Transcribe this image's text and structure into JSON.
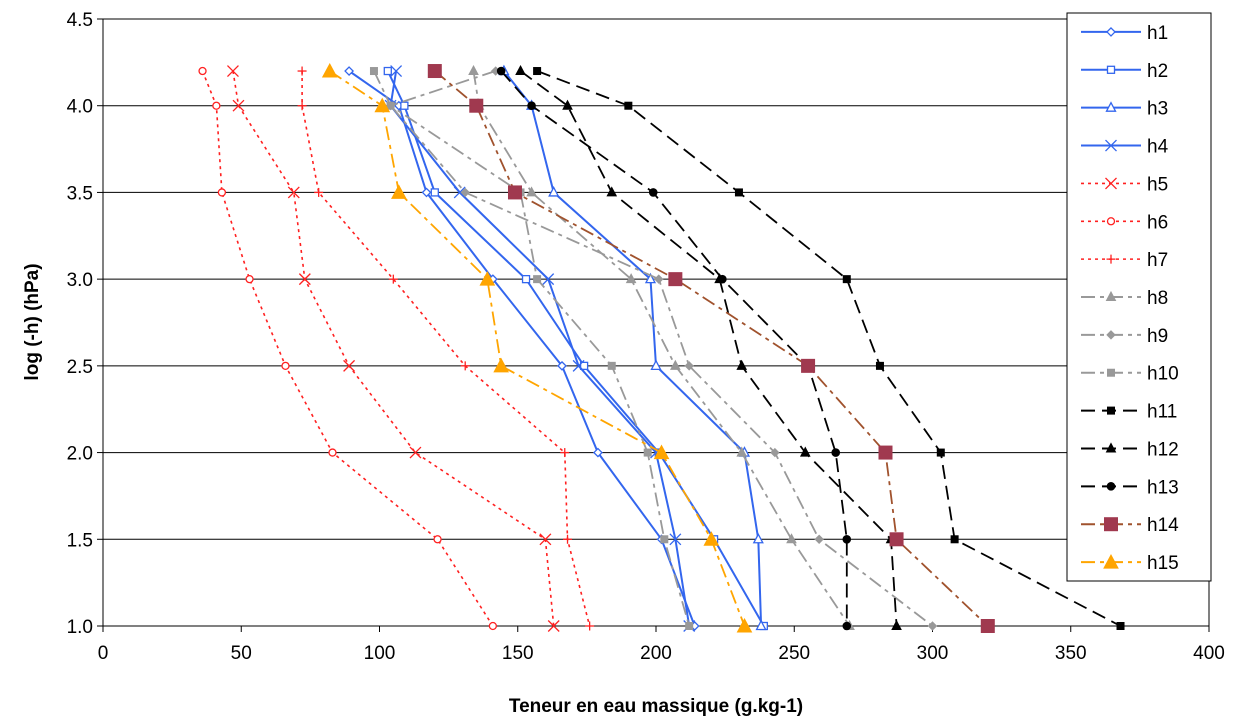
{
  "chart_data": {
    "type": "line",
    "title": "",
    "xlabel": "Teneur en eau massique (g.kg-1)",
    "ylabel": "log (-h) (hPa)",
    "xlim": [
      0,
      400
    ],
    "ylim": [
      1.0,
      4.5
    ],
    "xticks": [
      "0",
      "50",
      "100",
      "150",
      "200",
      "250",
      "300",
      "350",
      "400"
    ],
    "yticks": [
      "1.0",
      "1.5",
      "2.0",
      "2.5",
      "3.0",
      "3.5",
      "4.0",
      "4.5"
    ],
    "grid": "horizontal",
    "legend_position": "right",
    "series": [
      {
        "name": "h1",
        "color": "#3366ee",
        "dash": "solid",
        "marker": "diamond-open",
        "points": [
          [
            89,
            4.2
          ],
          [
            107,
            4.0
          ],
          [
            117,
            3.5
          ],
          [
            141,
            3.0
          ],
          [
            166,
            2.5
          ],
          [
            179,
            2.0
          ],
          [
            202,
            1.5
          ],
          [
            214,
            1.0
          ]
        ]
      },
      {
        "name": "h2",
        "color": "#3366ee",
        "dash": "solid",
        "marker": "square-open",
        "points": [
          [
            103,
            4.2
          ],
          [
            109,
            4.0
          ],
          [
            120,
            3.5
          ],
          [
            153,
            3.0
          ],
          [
            174,
            2.5
          ],
          [
            201,
            2.0
          ],
          [
            221,
            1.5
          ],
          [
            239,
            1.0
          ]
        ]
      },
      {
        "name": "h3",
        "color": "#3366ee",
        "dash": "solid",
        "marker": "triangle-open",
        "points": [
          [
            145,
            4.2
          ],
          [
            155,
            4.0
          ],
          [
            163,
            3.5
          ],
          [
            198,
            3.0
          ],
          [
            200,
            2.5
          ],
          [
            232,
            2.0
          ],
          [
            237,
            1.5
          ],
          [
            238,
            1.0
          ]
        ]
      },
      {
        "name": "h4",
        "color": "#3366ee",
        "dash": "solid",
        "marker": "x",
        "points": [
          [
            106,
            4.2
          ],
          [
            104,
            4.0
          ],
          [
            129,
            3.5
          ],
          [
            161,
            3.0
          ],
          [
            172,
            2.5
          ],
          [
            200,
            2.0
          ],
          [
            207,
            1.5
          ],
          [
            212,
            1.0
          ]
        ]
      },
      {
        "name": "h5",
        "color": "#ff2020",
        "dash": "dot",
        "marker": "x",
        "points": [
          [
            47,
            4.2
          ],
          [
            49,
            4.0
          ],
          [
            69,
            3.5
          ],
          [
            73,
            3.0
          ],
          [
            89,
            2.5
          ],
          [
            113,
            2.0
          ],
          [
            160,
            1.5
          ],
          [
            163,
            1.0
          ]
        ]
      },
      {
        "name": "h6",
        "color": "#ff2020",
        "dash": "dot",
        "marker": "circle-open",
        "points": [
          [
            36,
            4.2
          ],
          [
            41,
            4.0
          ],
          [
            43,
            3.5
          ],
          [
            53,
            3.0
          ],
          [
            66,
            2.5
          ],
          [
            83,
            2.0
          ],
          [
            121,
            1.5
          ],
          [
            141,
            1.0
          ]
        ]
      },
      {
        "name": "h7",
        "color": "#ff2020",
        "dash": "dot",
        "marker": "plus",
        "points": [
          [
            72,
            4.2
          ],
          [
            72,
            4.0
          ],
          [
            78,
            3.5
          ],
          [
            105,
            3.0
          ],
          [
            131,
            2.5
          ],
          [
            167,
            2.0
          ],
          [
            168,
            1.5
          ],
          [
            176,
            1.0
          ]
        ]
      },
      {
        "name": "h8",
        "color": "#999999",
        "dash": "dashdot",
        "marker": "triangle",
        "points": [
          [
            134,
            4.2
          ],
          [
            136,
            4.0
          ],
          [
            155,
            3.5
          ],
          [
            191,
            3.0
          ],
          [
            207,
            2.5
          ],
          [
            231,
            2.0
          ],
          [
            249,
            1.5
          ],
          [
            270,
            1.0
          ]
        ]
      },
      {
        "name": "h9",
        "color": "#999999",
        "dash": "dashdot",
        "marker": "diamond",
        "points": [
          [
            142,
            4.2
          ],
          [
            104,
            4.0
          ],
          [
            131,
            3.5
          ],
          [
            201,
            3.0
          ],
          [
            212,
            2.5
          ],
          [
            243,
            2.0
          ],
          [
            259,
            1.5
          ],
          [
            300,
            1.0
          ]
        ]
      },
      {
        "name": "h10",
        "color": "#999999",
        "dash": "dashdot",
        "marker": "square",
        "points": [
          [
            98,
            4.2
          ],
          [
            104,
            4.0
          ],
          [
            151,
            3.5
          ],
          [
            157,
            3.0
          ],
          [
            184,
            2.5
          ],
          [
            197,
            2.0
          ],
          [
            203,
            1.5
          ],
          [
            212,
            1.0
          ]
        ]
      },
      {
        "name": "h11",
        "color": "#000000",
        "dash": "dash",
        "marker": "square",
        "points": [
          [
            157,
            4.2
          ],
          [
            190,
            4.0
          ],
          [
            230,
            3.5
          ],
          [
            269,
            3.0
          ],
          [
            281,
            2.5
          ],
          [
            303,
            2.0
          ],
          [
            308,
            1.5
          ],
          [
            368,
            1.0
          ]
        ]
      },
      {
        "name": "h12",
        "color": "#000000",
        "dash": "dash",
        "marker": "triangle",
        "points": [
          [
            151,
            4.2
          ],
          [
            168,
            4.0
          ],
          [
            184,
            3.5
          ],
          [
            223,
            3.0
          ],
          [
            231,
            2.5
          ],
          [
            254,
            2.0
          ],
          [
            285,
            1.5
          ],
          [
            287,
            1.0
          ]
        ]
      },
      {
        "name": "h13",
        "color": "#000000",
        "dash": "dash",
        "marker": "circle",
        "points": [
          [
            144,
            4.2
          ],
          [
            155,
            4.0
          ],
          [
            199,
            3.5
          ],
          [
            224,
            3.0
          ],
          [
            255,
            2.5
          ],
          [
            265,
            2.0
          ],
          [
            269,
            1.5
          ],
          [
            269,
            1.0
          ]
        ]
      },
      {
        "name": "h14",
        "color": "#a0522d",
        "dash": "dashdot",
        "marker": "square-big",
        "marker_color": "#a0394f",
        "points": [
          [
            120,
            4.2
          ],
          [
            135,
            4.0
          ],
          [
            149,
            3.5
          ],
          [
            207,
            3.0
          ],
          [
            255,
            2.5
          ],
          [
            283,
            2.0
          ],
          [
            287,
            1.5
          ],
          [
            320,
            1.0
          ]
        ]
      },
      {
        "name": "h15",
        "color": "#ffa500",
        "dash": "dashdot",
        "marker": "triangle-big",
        "points": [
          [
            82,
            4.2
          ],
          [
            101,
            4.0
          ],
          [
            107,
            3.5
          ],
          [
            139,
            3.0
          ],
          [
            144,
            2.5
          ],
          [
            202,
            2.0
          ],
          [
            220,
            1.5
          ],
          [
            232,
            1.0
          ]
        ]
      }
    ]
  }
}
